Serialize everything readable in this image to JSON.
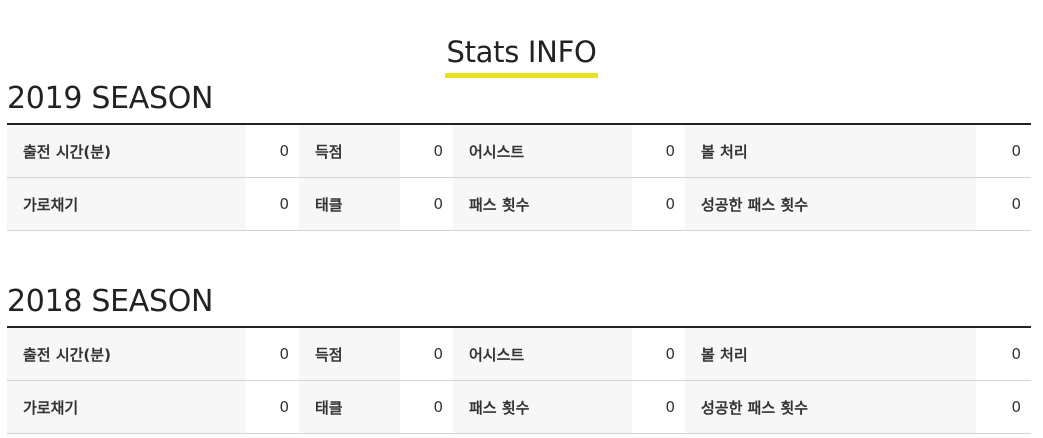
{
  "page_title": "Stats INFO",
  "seasons": [
    {
      "title": "2019 SEASON",
      "rows": [
        [
          {
            "label": "출전 시간(분)",
            "value": "0"
          },
          {
            "label": "득점",
            "value": "0"
          },
          {
            "label": "어시스트",
            "value": "0"
          },
          {
            "label": "볼 처리",
            "value": "0"
          }
        ],
        [
          {
            "label": "가로채기",
            "value": "0"
          },
          {
            "label": "태클",
            "value": "0"
          },
          {
            "label": "패스 횟수",
            "value": "0"
          },
          {
            "label": "성공한 패스 횟수",
            "value": "0"
          }
        ]
      ]
    },
    {
      "title": "2018 SEASON",
      "rows": [
        [
          {
            "label": "출전 시간(분)",
            "value": "0"
          },
          {
            "label": "득점",
            "value": "0"
          },
          {
            "label": "어시스트",
            "value": "0"
          },
          {
            "label": "볼 처리",
            "value": "0"
          }
        ],
        [
          {
            "label": "가로채기",
            "value": "0"
          },
          {
            "label": "태클",
            "value": "0"
          },
          {
            "label": "패스 횟수",
            "value": "0"
          },
          {
            "label": "성공한 패스 횟수",
            "value": "0"
          }
        ]
      ]
    }
  ],
  "colors": {
    "accent_underline": "#e6e31e",
    "label_bg": "#f7f7f7",
    "rule": "#222222"
  }
}
